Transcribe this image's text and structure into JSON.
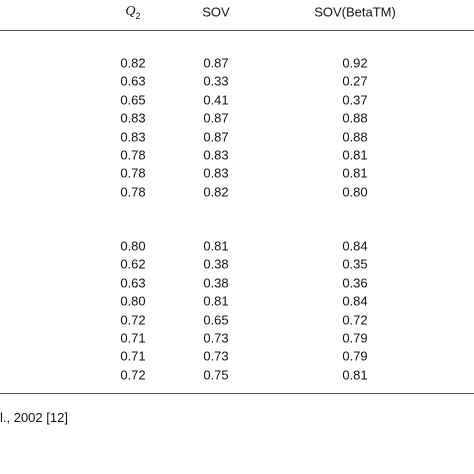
{
  "header": {
    "q2": {
      "symbol": "Q",
      "subscript": "2"
    },
    "sov": "SOV",
    "sov_betatm": "SOV(BetaTM)"
  },
  "groups": [
    {
      "rows": [
        [
          "0.82",
          "0.87",
          "0.92"
        ],
        [
          "0.63",
          "0.33",
          "0.27"
        ],
        [
          "0.65",
          "0.41",
          "0.37"
        ],
        [
          "0.83",
          "0.87",
          "0.88"
        ],
        [
          "0.83",
          "0.87",
          "0.88"
        ],
        [
          "0.78",
          "0.83",
          "0.81"
        ],
        [
          "0.78",
          "0.83",
          "0.81"
        ],
        [
          "0.78",
          "0.82",
          "0.80"
        ]
      ]
    },
    {
      "rows": [
        [
          "0.80",
          "0.81",
          "0.84"
        ],
        [
          "0.62",
          "0.38",
          "0.35"
        ],
        [
          "0.63",
          "0.38",
          "0.36"
        ],
        [
          "0.80",
          "0.81",
          "0.84"
        ],
        [
          "0.72",
          "0.65",
          "0.72"
        ],
        [
          "0.71",
          "0.73",
          "0.79"
        ],
        [
          "0.71",
          "0.73",
          "0.79"
        ],
        [
          "0.72",
          "0.75",
          "0.81"
        ]
      ]
    }
  ],
  "footnote": "l., 2002 [12]"
}
